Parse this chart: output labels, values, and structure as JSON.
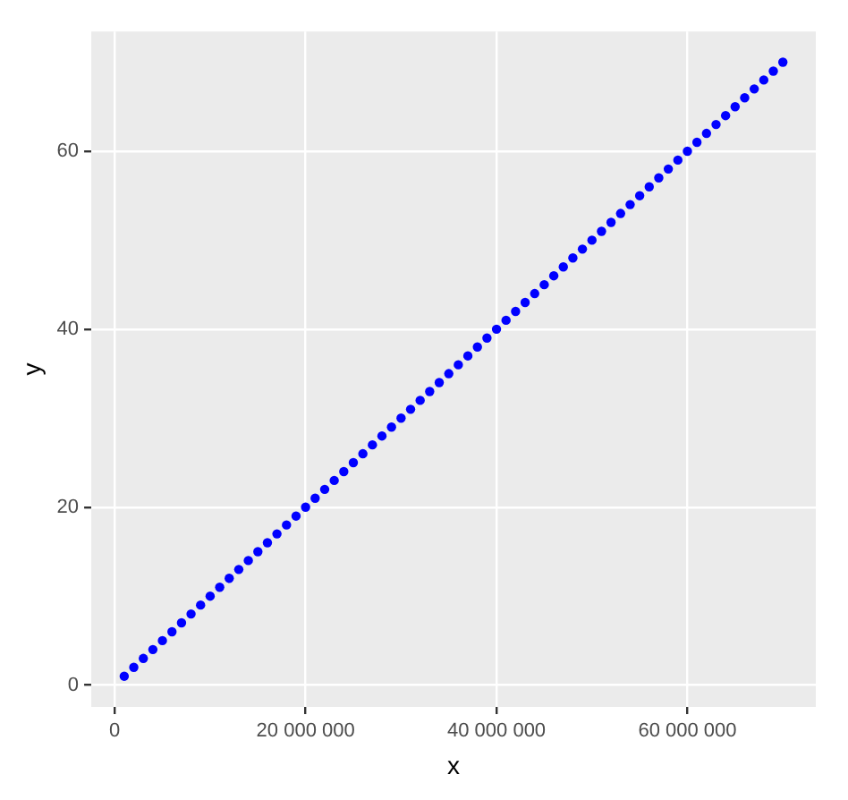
{
  "chart_data": {
    "type": "scatter",
    "xlabel": "x",
    "ylabel": "y",
    "marker": "circle",
    "grid": true,
    "legend": false,
    "xlim": [
      -2450000,
      73450000
    ],
    "ylim": [
      -2.45,
      73.45
    ],
    "xticks": [
      {
        "value": 0,
        "label": "0"
      },
      {
        "value": 20000000,
        "label": "20 000 000"
      },
      {
        "value": 40000000,
        "label": "40 000 000"
      },
      {
        "value": 60000000,
        "label": "60 000 000"
      }
    ],
    "yticks": [
      0,
      20,
      40,
      60
    ],
    "series": [
      {
        "color": "#0000ff",
        "x": [
          1000000,
          2000000,
          3000000,
          4000000,
          5000000,
          6000000,
          7000000,
          8000000,
          9000000,
          10000000,
          11000000,
          12000000,
          13000000,
          14000000,
          15000000,
          16000000,
          17000000,
          18000000,
          19000000,
          20000000,
          21000000,
          22000000,
          23000000,
          24000000,
          25000000,
          26000000,
          27000000,
          28000000,
          29000000,
          30000000,
          31000000,
          32000000,
          33000000,
          34000000,
          35000000,
          36000000,
          37000000,
          38000000,
          39000000,
          40000000,
          41000000,
          42000000,
          43000000,
          44000000,
          45000000,
          46000000,
          47000000,
          48000000,
          49000000,
          50000000,
          51000000,
          52000000,
          53000000,
          54000000,
          55000000,
          56000000,
          57000000,
          58000000,
          59000000,
          60000000,
          61000000,
          62000000,
          63000000,
          64000000,
          65000000,
          66000000,
          67000000,
          68000000,
          69000000,
          70000000
        ],
        "values": [
          1,
          2,
          3,
          4,
          5,
          6,
          7,
          8,
          9,
          10,
          11,
          12,
          13,
          14,
          15,
          16,
          17,
          18,
          19,
          20,
          21,
          22,
          23,
          24,
          25,
          26,
          27,
          28,
          29,
          30,
          31,
          32,
          33,
          34,
          35,
          36,
          37,
          38,
          39,
          40,
          41,
          42,
          43,
          44,
          45,
          46,
          47,
          48,
          49,
          50,
          51,
          52,
          53,
          54,
          55,
          56,
          57,
          58,
          59,
          60,
          61,
          62,
          63,
          64,
          65,
          66,
          67,
          68,
          69,
          70
        ]
      }
    ]
  }
}
